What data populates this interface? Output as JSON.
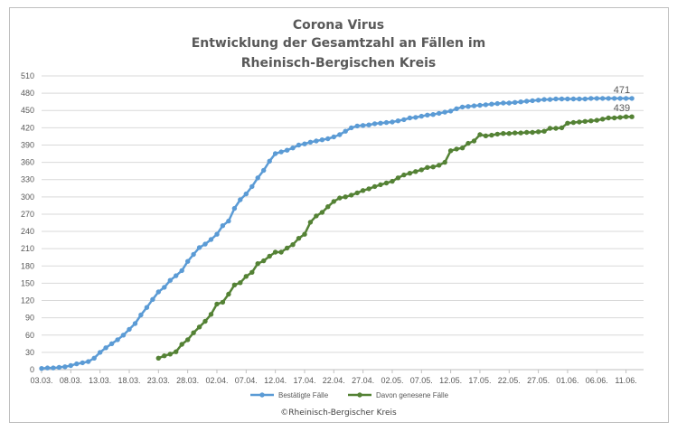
{
  "chart_data": {
    "type": "line",
    "title_lines": [
      "Corona Virus",
      "Entwicklung der Gesamtzahl an Fällen im",
      "Rheinisch-Bergischen Kreis"
    ],
    "ylim": [
      0,
      510
    ],
    "yticks": [
      0,
      30,
      60,
      90,
      120,
      150,
      180,
      210,
      240,
      270,
      300,
      330,
      360,
      390,
      420,
      450,
      480,
      510
    ],
    "xlim": [
      "2020-03-03",
      "2020-06-14"
    ],
    "xticks": [
      "03.03.",
      "08.03.",
      "13.03.",
      "18.03.",
      "23.03.",
      "28.03.",
      "02.04.",
      "07.04.",
      "12.04.",
      "17.04.",
      "22.04.",
      "27.04.",
      "02.05.",
      "07.05.",
      "12.05.",
      "17.05.",
      "22.05.",
      "27.05.",
      "01.06.",
      "06.06.",
      "11.06."
    ],
    "grid": "horizontal",
    "legend_position": "bottom",
    "series": [
      {
        "name": "Bestätigte Fälle",
        "color": "#5b9bd5",
        "end_label": "471",
        "start_date": "2020-03-03",
        "values": [
          2,
          3,
          3,
          4,
          5,
          7,
          10,
          12,
          14,
          20,
          30,
          38,
          45,
          52,
          60,
          70,
          80,
          95,
          108,
          122,
          135,
          143,
          155,
          163,
          172,
          188,
          200,
          212,
          218,
          226,
          235,
          250,
          258,
          280,
          295,
          305,
          318,
          333,
          346,
          362,
          375,
          378,
          381,
          385,
          390,
          392,
          395,
          397,
          399,
          401,
          404,
          408,
          414,
          420,
          423,
          424,
          425,
          427,
          428,
          429,
          430,
          432,
          434,
          437,
          438,
          440,
          442,
          443,
          445,
          447,
          449,
          453,
          456,
          457,
          458,
          459,
          460,
          461,
          462,
          463,
          463,
          464,
          465,
          466,
          467,
          468,
          469,
          469,
          470,
          470,
          470,
          470,
          470,
          470,
          471,
          471,
          471,
          471,
          471,
          471,
          471,
          471
        ]
      },
      {
        "name": "Davon genesene Fälle",
        "color": "#548235",
        "end_label": "439",
        "start_date": "2020-03-23",
        "values": [
          20,
          24,
          27,
          31,
          44,
          52,
          64,
          74,
          84,
          96,
          114,
          117,
          131,
          147,
          151,
          162,
          169,
          184,
          189,
          197,
          204,
          204,
          211,
          217,
          228,
          235,
          256,
          267,
          273,
          283,
          292,
          298,
          300,
          303,
          307,
          311,
          314,
          318,
          321,
          324,
          327,
          333,
          338,
          341,
          344,
          347,
          351,
          352,
          355,
          360,
          380,
          383,
          385,
          393,
          397,
          408,
          406,
          407,
          409,
          410,
          410,
          411,
          411,
          412,
          412,
          413,
          414,
          419,
          419,
          420,
          428,
          429,
          430,
          431,
          432,
          433,
          435,
          437,
          437,
          438,
          439,
          439
        ]
      }
    ],
    "credit": "©Rheinisch-Bergischer Kreis"
  }
}
